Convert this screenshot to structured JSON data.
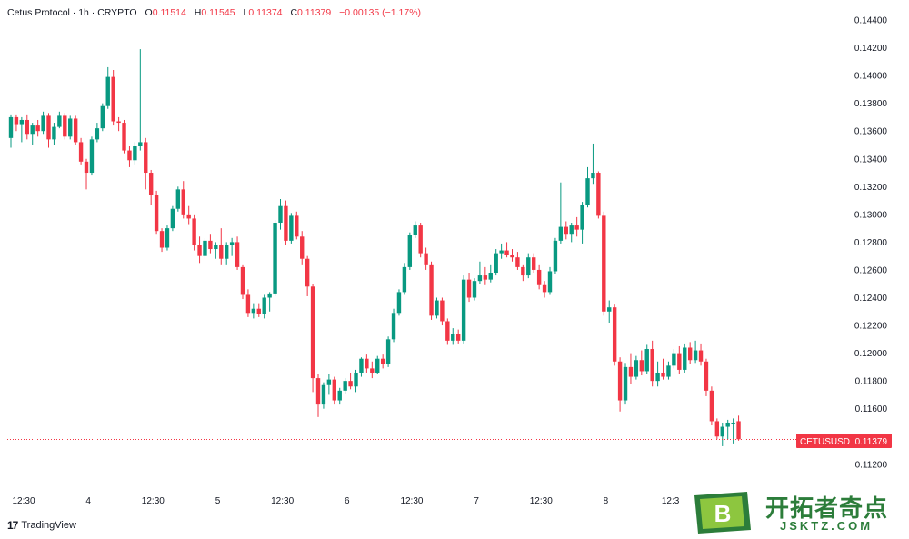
{
  "header": {
    "symbol": "Cetus Protocol · 1h · CRYPTO",
    "o_label": "O",
    "o_value": "0.11514",
    "h_label": "H",
    "h_value": "0.11545",
    "l_label": "L",
    "l_value": "0.11374",
    "c_label": "C",
    "c_value": "0.11379",
    "change": "−0.00135 (−1.17%)"
  },
  "price_tag": {
    "ticker": "CETUSUSD",
    "value": "0.11379"
  },
  "footer": {
    "logo_text": "TradingView"
  },
  "watermark": {
    "cn": "开拓者奇点",
    "en": "JSKTZ.COM",
    "badge": "B"
  },
  "colors": {
    "up": "#089981",
    "down": "#f23645",
    "text": "#131722",
    "dotted": "#f23645",
    "watermark": "#2c7d3a"
  },
  "chart_data": {
    "type": "candlestick",
    "y_ticks": [
      "0.11200",
      "0.11400",
      "0.11600",
      "0.11800",
      "0.12000",
      "0.12200",
      "0.12400",
      "0.12600",
      "0.12800",
      "0.13000",
      "0.13200",
      "0.13400",
      "0.13600",
      "0.13800",
      "0.14000",
      "0.14200",
      "0.14400"
    ],
    "ylim": [
      0.1117,
      0.1452
    ],
    "x_ticks": [
      {
        "label": "12:30",
        "index": 0
      },
      {
        "label": "4",
        "index": 12
      },
      {
        "label": "12:30",
        "index": 24
      },
      {
        "label": "5",
        "index": 36
      },
      {
        "label": "12:30",
        "index": 48
      },
      {
        "label": "6",
        "index": 60
      },
      {
        "label": "12:30",
        "index": 72
      },
      {
        "label": "7",
        "index": 84
      },
      {
        "label": "12:30",
        "index": 96
      },
      {
        "label": "8",
        "index": 108
      },
      {
        "label": "12:3",
        "index": 120
      }
    ],
    "last_price": 0.11379,
    "candles": [
      [
        0.1355,
        0.1372,
        0.1348,
        0.137
      ],
      [
        0.137,
        0.1372,
        0.136,
        0.1365
      ],
      [
        0.1365,
        0.137,
        0.1352,
        0.1368
      ],
      [
        0.1368,
        0.1372,
        0.1354,
        0.1358
      ],
      [
        0.1358,
        0.1366,
        0.135,
        0.1364
      ],
      [
        0.1364,
        0.1368,
        0.1356,
        0.136
      ],
      [
        0.136,
        0.1374,
        0.1358,
        0.1371
      ],
      [
        0.1371,
        0.1373,
        0.1348,
        0.1354
      ],
      [
        0.1354,
        0.1366,
        0.135,
        0.1363
      ],
      [
        0.1363,
        0.1374,
        0.1362,
        0.1371
      ],
      [
        0.1371,
        0.1373,
        0.1354,
        0.1356
      ],
      [
        0.1356,
        0.1371,
        0.1354,
        0.1369
      ],
      [
        0.1369,
        0.1371,
        0.135,
        0.1352
      ],
      [
        0.1352,
        0.1355,
        0.1336,
        0.1338
      ],
      [
        0.1338,
        0.134,
        0.1318,
        0.133
      ],
      [
        0.133,
        0.1356,
        0.1328,
        0.1354
      ],
      [
        0.1354,
        0.1366,
        0.1352,
        0.1362
      ],
      [
        0.1362,
        0.138,
        0.136,
        0.1378
      ],
      [
        0.1378,
        0.1406,
        0.1376,
        0.1399
      ],
      [
        0.1399,
        0.1404,
        0.1364,
        0.1367
      ],
      [
        0.1367,
        0.137,
        0.136,
        0.1366
      ],
      [
        0.1366,
        0.1368,
        0.1344,
        0.1346
      ],
      [
        0.1346,
        0.1349,
        0.1334,
        0.1339
      ],
      [
        0.1339,
        0.1352,
        0.1336,
        0.1349
      ],
      [
        0.1349,
        0.1419,
        0.1346,
        0.1352
      ],
      [
        0.1352,
        0.1355,
        0.1318,
        0.133
      ],
      [
        0.133,
        0.1332,
        0.1307,
        0.1314
      ],
      [
        0.1314,
        0.1317,
        0.1286,
        0.1288
      ],
      [
        0.1288,
        0.129,
        0.1273,
        0.1276
      ],
      [
        0.1276,
        0.1292,
        0.1274,
        0.129
      ],
      [
        0.129,
        0.1306,
        0.1288,
        0.1304
      ],
      [
        0.1304,
        0.132,
        0.1302,
        0.1318
      ],
      [
        0.1318,
        0.1324,
        0.1297,
        0.13
      ],
      [
        0.13,
        0.1306,
        0.1293,
        0.1297
      ],
      [
        0.1297,
        0.13,
        0.1274,
        0.1278
      ],
      [
        0.1278,
        0.1284,
        0.1265,
        0.127
      ],
      [
        0.127,
        0.1283,
        0.1268,
        0.1281
      ],
      [
        0.1281,
        0.1286,
        0.1272,
        0.1275
      ],
      [
        0.1275,
        0.128,
        0.1268,
        0.1278
      ],
      [
        0.1278,
        0.129,
        0.1264,
        0.1268
      ],
      [
        0.1268,
        0.128,
        0.1264,
        0.1278
      ],
      [
        0.1278,
        0.1283,
        0.127,
        0.128
      ],
      [
        0.128,
        0.1284,
        0.126,
        0.1262
      ],
      [
        0.1262,
        0.1264,
        0.1239,
        0.1242
      ],
      [
        0.1242,
        0.1246,
        0.1226,
        0.1229
      ],
      [
        0.1229,
        0.1236,
        0.1225,
        0.1232
      ],
      [
        0.1232,
        0.1236,
        0.1226,
        0.1228
      ],
      [
        0.1228,
        0.1242,
        0.1225,
        0.124
      ],
      [
        0.124,
        0.1244,
        0.123,
        0.1243
      ],
      [
        0.1243,
        0.1296,
        0.1241,
        0.1294
      ],
      [
        0.1294,
        0.1311,
        0.1289,
        0.1306
      ],
      [
        0.1306,
        0.131,
        0.1278,
        0.1281
      ],
      [
        0.1281,
        0.1301,
        0.1279,
        0.1299
      ],
      [
        0.1299,
        0.1302,
        0.1282,
        0.1284
      ],
      [
        0.1284,
        0.1288,
        0.1264,
        0.1268
      ],
      [
        0.1268,
        0.127,
        0.1241,
        0.1248
      ],
      [
        0.1248,
        0.125,
        0.1172,
        0.1182
      ],
      [
        0.1182,
        0.1185,
        0.1154,
        0.1163
      ],
      [
        0.1163,
        0.1179,
        0.116,
        0.1177
      ],
      [
        0.1177,
        0.1185,
        0.117,
        0.1181
      ],
      [
        0.1181,
        0.1183,
        0.1163,
        0.1166
      ],
      [
        0.1166,
        0.1175,
        0.1163,
        0.1173
      ],
      [
        0.1173,
        0.1182,
        0.1171,
        0.118
      ],
      [
        0.118,
        0.1186,
        0.1174,
        0.1176
      ],
      [
        0.1176,
        0.1188,
        0.1172,
        0.1186
      ],
      [
        0.1186,
        0.1197,
        0.1183,
        0.1196
      ],
      [
        0.1196,
        0.1199,
        0.1186,
        0.1189
      ],
      [
        0.1189,
        0.1194,
        0.1182,
        0.1186
      ],
      [
        0.1186,
        0.1198,
        0.1185,
        0.1196
      ],
      [
        0.1196,
        0.1199,
        0.1189,
        0.1192
      ],
      [
        0.1192,
        0.1212,
        0.119,
        0.121
      ],
      [
        0.121,
        0.1232,
        0.1208,
        0.1229
      ],
      [
        0.1229,
        0.1246,
        0.1227,
        0.1244
      ],
      [
        0.1244,
        0.1265,
        0.1242,
        0.1262
      ],
      [
        0.1262,
        0.1287,
        0.126,
        0.1285
      ],
      [
        0.1285,
        0.1295,
        0.1283,
        0.1292
      ],
      [
        0.1292,
        0.1294,
        0.1269,
        0.1272
      ],
      [
        0.1272,
        0.1276,
        0.126,
        0.1264
      ],
      [
        0.1264,
        0.1266,
        0.1224,
        0.1227
      ],
      [
        0.1227,
        0.124,
        0.1225,
        0.1238
      ],
      [
        0.1238,
        0.124,
        0.122,
        0.1223
      ],
      [
        0.1223,
        0.1225,
        0.1206,
        0.1209
      ],
      [
        0.1209,
        0.1218,
        0.1206,
        0.1214
      ],
      [
        0.1214,
        0.1217,
        0.1207,
        0.1209
      ],
      [
        0.1209,
        0.1256,
        0.1207,
        0.1253
      ],
      [
        0.1253,
        0.1258,
        0.1237,
        0.124
      ],
      [
        0.124,
        0.1254,
        0.1238,
        0.1252
      ],
      [
        0.1252,
        0.1266,
        0.125,
        0.1256
      ],
      [
        0.1256,
        0.1262,
        0.1249,
        0.1253
      ],
      [
        0.1253,
        0.1264,
        0.1251,
        0.1258
      ],
      [
        0.1258,
        0.1275,
        0.1256,
        0.1272
      ],
      [
        0.1272,
        0.1279,
        0.1268,
        0.1274
      ],
      [
        0.1274,
        0.128,
        0.1269,
        0.1271
      ],
      [
        0.1271,
        0.1275,
        0.1266,
        0.1269
      ],
      [
        0.1269,
        0.1273,
        0.126,
        0.1262
      ],
      [
        0.1262,
        0.1264,
        0.1252,
        0.1256
      ],
      [
        0.1256,
        0.1272,
        0.1254,
        0.1269
      ],
      [
        0.1269,
        0.1272,
        0.1258,
        0.126
      ],
      [
        0.126,
        0.1264,
        0.1246,
        0.1249
      ],
      [
        0.1249,
        0.1252,
        0.124,
        0.1244
      ],
      [
        0.1244,
        0.1262,
        0.1242,
        0.1259
      ],
      [
        0.1259,
        0.1283,
        0.1257,
        0.1281
      ],
      [
        0.1281,
        0.1323,
        0.1279,
        0.1291
      ],
      [
        0.1291,
        0.1295,
        0.1282,
        0.1286
      ],
      [
        0.1286,
        0.1294,
        0.128,
        0.1292
      ],
      [
        0.1292,
        0.1298,
        0.1284,
        0.1289
      ],
      [
        0.1289,
        0.1309,
        0.1279,
        0.1307
      ],
      [
        0.1307,
        0.1334,
        0.1305,
        0.1326
      ],
      [
        0.1326,
        0.1351,
        0.1322,
        0.133
      ],
      [
        0.133,
        0.1331,
        0.1297,
        0.1299
      ],
      [
        0.1299,
        0.1302,
        0.1227,
        0.123
      ],
      [
        0.123,
        0.1238,
        0.1222,
        0.1233
      ],
      [
        0.1233,
        0.1235,
        0.1191,
        0.1194
      ],
      [
        0.1194,
        0.1197,
        0.1158,
        0.1166
      ],
      [
        0.1166,
        0.1193,
        0.1163,
        0.119
      ],
      [
        0.119,
        0.12,
        0.1178,
        0.1183
      ],
      [
        0.1183,
        0.1198,
        0.1181,
        0.1195
      ],
      [
        0.1195,
        0.1202,
        0.1184,
        0.1187
      ],
      [
        0.1187,
        0.1206,
        0.1185,
        0.1203
      ],
      [
        0.1203,
        0.1209,
        0.1176,
        0.118
      ],
      [
        0.118,
        0.1194,
        0.1176,
        0.1186
      ],
      [
        0.1186,
        0.1196,
        0.1181,
        0.1183
      ],
      [
        0.1183,
        0.1194,
        0.1181,
        0.1191
      ],
      [
        0.1191,
        0.1203,
        0.1189,
        0.12
      ],
      [
        0.12,
        0.1205,
        0.1185,
        0.1188
      ],
      [
        0.1188,
        0.1207,
        0.1186,
        0.1204
      ],
      [
        0.1204,
        0.1208,
        0.1192,
        0.1195
      ],
      [
        0.1195,
        0.1209,
        0.1193,
        0.1202
      ],
      [
        0.1202,
        0.1207,
        0.1191,
        0.1194
      ],
      [
        0.1194,
        0.1196,
        0.1169,
        0.1173
      ],
      [
        0.1173,
        0.1176,
        0.1148,
        0.1151
      ],
      [
        0.1151,
        0.1153,
        0.1138,
        0.114
      ],
      [
        0.114,
        0.115,
        0.1133,
        0.1147
      ],
      [
        0.1147,
        0.1152,
        0.1138,
        0.115
      ],
      [
        0.115,
        0.1153,
        0.1135,
        0.115
      ],
      [
        0.1151,
        0.1155,
        0.1137,
        0.1138
      ]
    ]
  }
}
